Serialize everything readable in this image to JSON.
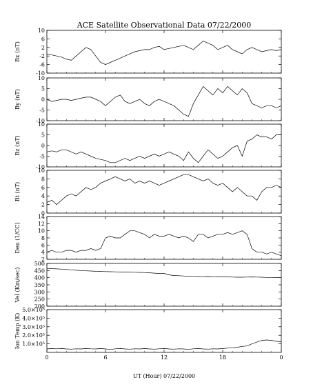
{
  "title": "ACE Satellite Observational Data   07/22/2000",
  "xlabel": "UT (Hour)   07/22/2000",
  "colors": {
    "background": "#ffffff",
    "ink": "#000000"
  },
  "chart_data": [
    {
      "type": "line",
      "ylabel": "Bx (nT)",
      "ylim": [
        -10,
        10
      ],
      "yticks": [
        10,
        6,
        2,
        -2,
        -6,
        -10
      ],
      "xlim": [
        0,
        24
      ],
      "xticks": [
        "0",
        "6",
        "12",
        "18",
        "0"
      ],
      "series": [
        {
          "x": [
            0,
            0.5,
            1,
            1.5,
            2,
            2.5,
            3,
            3.5,
            4,
            4.5,
            5,
            5.5,
            6,
            6.5,
            7,
            7.5,
            8,
            8.5,
            9,
            9.5,
            10,
            10.5,
            11,
            11.5,
            12,
            12.5,
            13,
            13.5,
            14,
            14.5,
            15,
            15.5,
            16,
            16.5,
            17,
            17.5,
            18,
            18.5,
            19,
            19.5,
            20,
            20.5,
            21,
            21.5,
            22,
            22.5,
            23,
            23.5,
            24
          ],
          "values": [
            -1,
            -1.5,
            -2,
            -2.5,
            -3.5,
            -4,
            -2,
            0,
            2,
            1,
            -2,
            -5,
            -6,
            -5,
            -4,
            -3,
            -2,
            -1,
            0,
            0.5,
            1,
            1,
            2,
            2.5,
            1,
            1.5,
            2,
            2.5,
            3,
            2,
            1,
            3,
            5,
            4,
            3,
            1,
            2,
            3,
            1,
            0,
            -1,
            1,
            2,
            1,
            0,
            0.5,
            1,
            0.5,
            1
          ]
        }
      ]
    },
    {
      "type": "line",
      "ylabel": "By (nT)",
      "ylim": [
        -10,
        10
      ],
      "yticks": [
        10,
        5,
        0,
        -5,
        -10
      ],
      "xlim": [
        0,
        24
      ],
      "xticks": [
        "0",
        "6",
        "12",
        "18",
        "0"
      ],
      "series": [
        {
          "x": [
            0,
            0.5,
            1,
            1.5,
            2,
            2.5,
            3,
            3.5,
            4,
            4.5,
            5,
            5.5,
            6,
            6.5,
            7,
            7.5,
            8,
            8.5,
            9,
            9.5,
            10,
            10.5,
            11,
            11.5,
            12,
            12.5,
            13,
            13.5,
            14,
            14.5,
            15,
            15.5,
            16,
            16.5,
            17,
            17.5,
            18,
            18.5,
            19,
            19.5,
            20,
            20.5,
            21,
            21.5,
            22,
            22.5,
            23,
            23.5,
            24
          ],
          "values": [
            0,
            -1,
            -0.5,
            0,
            0,
            -0.5,
            0,
            0.5,
            1,
            1,
            0,
            -1,
            -3,
            -1,
            1,
            2,
            -1,
            -2,
            -1,
            0,
            -2,
            -3,
            -1,
            0,
            -1,
            -2,
            -3,
            -5,
            -7,
            -8,
            -2,
            2,
            6,
            4,
            2,
            5,
            3,
            6,
            4,
            2,
            5,
            3,
            -2,
            -3,
            -4,
            -3,
            -3,
            -4,
            -3
          ]
        }
      ]
    },
    {
      "type": "line",
      "ylabel": "Bz (nT)",
      "ylim": [
        -10,
        10
      ],
      "yticks": [
        10,
        5,
        0,
        -5,
        -10
      ],
      "xlim": [
        0,
        24
      ],
      "xticks": [
        "0",
        "6",
        "12",
        "18",
        "0"
      ],
      "series": [
        {
          "x": [
            0,
            0.5,
            1,
            1.5,
            2,
            2.5,
            3,
            3.5,
            4,
            4.5,
            5,
            5.5,
            6,
            6.5,
            7,
            7.5,
            8,
            8.5,
            9,
            9.5,
            10,
            10.5,
            11,
            11.5,
            12,
            12.5,
            13,
            13.5,
            14,
            14.5,
            15,
            15.5,
            16,
            16.5,
            17,
            17.5,
            18,
            18.5,
            19,
            19.5,
            20,
            20.5,
            21,
            21.5,
            22,
            22.5,
            23,
            23.5,
            24
          ],
          "values": [
            -3,
            -2.5,
            -3,
            -2,
            -2,
            -3,
            -4,
            -3,
            -4,
            -5,
            -6,
            -6.5,
            -7,
            -8,
            -8,
            -7,
            -6,
            -7,
            -6,
            -5,
            -6,
            -5,
            -4,
            -5,
            -4,
            -3,
            -4,
            -5,
            -7,
            -3,
            -6,
            -8,
            -5,
            -2,
            -4,
            -6,
            -5,
            -3,
            -1,
            0,
            -5,
            2,
            3,
            5,
            4,
            4,
            3,
            5,
            5
          ]
        }
      ]
    },
    {
      "type": "line",
      "ylabel": "Bt (nT)",
      "ylim": [
        0,
        10
      ],
      "yticks": [
        10,
        8,
        6,
        4,
        2,
        0
      ],
      "xlim": [
        0,
        24
      ],
      "xticks": [
        "0",
        "6",
        "12",
        "18",
        "0"
      ],
      "series": [
        {
          "x": [
            0,
            0.5,
            1,
            1.5,
            2,
            2.5,
            3,
            3.5,
            4,
            4.5,
            5,
            5.5,
            6,
            6.5,
            7,
            7.5,
            8,
            8.5,
            9,
            9.5,
            10,
            10.5,
            11,
            11.5,
            12,
            12.5,
            13,
            13.5,
            14,
            14.5,
            15,
            15.5,
            16,
            16.5,
            17,
            17.5,
            18,
            18.5,
            19,
            19.5,
            20,
            20.5,
            21,
            21.5,
            22,
            22.5,
            23,
            23.5,
            24
          ],
          "values": [
            2.5,
            3,
            2,
            3,
            4,
            4.5,
            4,
            5,
            6,
            5.5,
            6,
            7,
            7.5,
            8,
            8.5,
            8,
            7.5,
            8,
            7,
            7.5,
            7,
            7.5,
            7,
            6.5,
            7,
            7.5,
            8,
            8.5,
            9,
            9,
            8.5,
            8,
            7.5,
            8,
            7,
            6.5,
            7,
            6,
            5,
            6,
            5,
            4,
            4,
            3,
            5,
            6,
            6,
            6.5,
            6
          ]
        }
      ]
    },
    {
      "type": "line",
      "ylabel": "Den (1/CC)",
      "ylim": [
        2,
        14
      ],
      "yticks": [
        14,
        12,
        10,
        8,
        6,
        4,
        2
      ],
      "xlim": [
        0,
        24
      ],
      "xticks": [
        "0",
        "6",
        "12",
        "18",
        "0"
      ],
      "series": [
        {
          "x": [
            0,
            0.5,
            1,
            1.5,
            2,
            2.5,
            3,
            3.5,
            4,
            4.5,
            5,
            5.5,
            6,
            6.5,
            7,
            7.5,
            8,
            8.5,
            9,
            9.5,
            10,
            10.5,
            11,
            11.5,
            12,
            12.5,
            13,
            13.5,
            14,
            14.5,
            15,
            15.5,
            16,
            16.5,
            17,
            17.5,
            18,
            18.5,
            19,
            19.5,
            20,
            20.5,
            21,
            21.5,
            22,
            22.5,
            23,
            23.5,
            24
          ],
          "values": [
            4,
            4.5,
            4,
            4,
            4.5,
            4.5,
            4,
            4.5,
            4.5,
            5,
            4.5,
            5,
            8,
            8.5,
            8,
            8,
            9,
            10,
            10,
            9.5,
            9,
            8,
            9,
            8.5,
            8.5,
            9,
            8.5,
            8,
            8.5,
            8,
            7,
            9,
            9,
            8,
            8.5,
            9,
            9,
            9.5,
            9,
            9.5,
            10,
            9,
            5,
            4,
            4,
            3.5,
            4,
            3.5,
            3
          ]
        }
      ]
    },
    {
      "type": "line",
      "ylabel": "Vel (Km/sec)",
      "ylim": [
        200,
        500
      ],
      "yticks": [
        500,
        450,
        400,
        350,
        300,
        250,
        200
      ],
      "xlim": [
        0,
        24
      ],
      "xticks": [
        "0",
        "6",
        "12",
        "18",
        "0"
      ],
      "series": [
        {
          "x": [
            0,
            0.5,
            1,
            1.5,
            2,
            2.5,
            3,
            3.5,
            4,
            4.5,
            5,
            5.5,
            6,
            6.5,
            7,
            7.5,
            8,
            8.5,
            9,
            9.5,
            10,
            10.5,
            11,
            11.5,
            12,
            12.5,
            13,
            13.5,
            14,
            14.5,
            15,
            15.5,
            16,
            16.5,
            17,
            17.5,
            18,
            18.5,
            19,
            19.5,
            20,
            20.5,
            21,
            21.5,
            22,
            22.5,
            23,
            23.5,
            24
          ],
          "values": [
            465,
            463,
            462,
            460,
            458,
            455,
            452,
            450,
            448,
            447,
            445,
            444,
            443,
            442,
            441,
            440,
            440,
            439,
            438,
            437,
            436,
            434,
            432,
            430,
            430,
            420,
            415,
            414,
            412,
            410,
            409,
            408,
            407,
            408,
            407,
            406,
            405,
            405,
            404,
            403,
            403,
            404,
            405,
            404,
            403,
            402,
            402,
            401,
            400
          ]
        }
      ]
    },
    {
      "type": "line",
      "ylabel": "Ion Temp (K)",
      "ylim": [
        0,
        500000
      ],
      "yticks": [
        "5.0×10⁵",
        "4.0×10⁵",
        "3.0×10⁵",
        "2.0×10⁵",
        "1.0×10⁵"
      ],
      "ytick_values": [
        500000,
        400000,
        300000,
        200000,
        100000
      ],
      "xlim": [
        0,
        24
      ],
      "xticks": [
        "0",
        "6",
        "12",
        "18",
        "0"
      ],
      "series": [
        {
          "x": [
            0,
            0.5,
            1,
            1.5,
            2,
            2.5,
            3,
            3.5,
            4,
            4.5,
            5,
            5.5,
            6,
            6.5,
            7,
            7.5,
            8,
            8.5,
            9,
            9.5,
            10,
            10.5,
            11,
            11.5,
            12,
            12.5,
            13,
            13.5,
            14,
            14.5,
            15,
            15.5,
            16,
            16.5,
            17,
            17.5,
            18,
            18.5,
            19,
            19.5,
            20,
            20.5,
            21,
            21.5,
            22,
            22.5,
            23,
            23.5,
            24
          ],
          "values": [
            40000,
            45000,
            42000,
            45000,
            40000,
            38000,
            42000,
            40000,
            45000,
            42000,
            40000,
            45000,
            40000,
            35000,
            42000,
            45000,
            40000,
            38000,
            42000,
            40000,
            45000,
            40000,
            38000,
            42000,
            45000,
            40000,
            38000,
            42000,
            40000,
            35000,
            42000,
            45000,
            40000,
            38000,
            42000,
            40000,
            45000,
            50000,
            55000,
            60000,
            70000,
            75000,
            100000,
            120000,
            140000,
            145000,
            140000,
            130000,
            125000
          ]
        }
      ]
    }
  ]
}
